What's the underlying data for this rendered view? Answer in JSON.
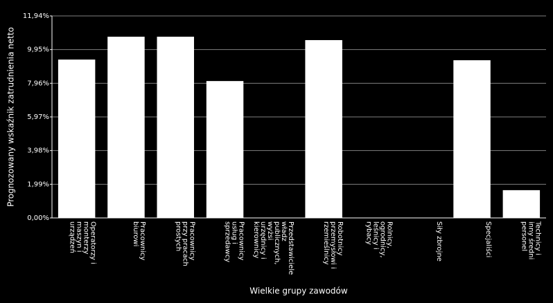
{
  "chart_data": {
    "type": "bar",
    "x_label": "Wielkie grupy zawodów",
    "y_label": "Prognozowany wskaźnik zatrudnienia netto",
    "categories": [
      "Operatorzy i monterzy maszyn i urządzeń",
      "Pracownicy biurowi",
      "Pracownicy przy pracach prostych",
      "Pracownicy usług i sprzedawcy",
      "Przedstawiciele władz publicznych, wyżsi urzędnicy i kierownicy",
      "Robotnicy przemysłowi i rzemieślnicy",
      "Rolnicy, ogrodnicy, leśnicy i rybacy",
      "Siły zbrojne",
      "Specjaliści",
      "Technicy i inny średni personel"
    ],
    "values": [
      9.36,
      10.71,
      10.71,
      8.09,
      null,
      10.51,
      null,
      null,
      9.32,
      1.64
    ],
    "color": "#ffffff",
    "ylim": [
      0,
      11.94
    ],
    "yticks": [
      {
        "value": 0,
        "label": "0,00%"
      },
      {
        "value": 1.99,
        "label": "1,99%"
      },
      {
        "value": 3.98,
        "label": "3,98%"
      },
      {
        "value": 5.97,
        "label": "5,97%"
      },
      {
        "value": 7.96,
        "label": "7,96%"
      },
      {
        "value": 9.95,
        "label": "9,95%"
      },
      {
        "value": 11.94,
        "label": "11,94%"
      }
    ],
    "grid": true
  }
}
